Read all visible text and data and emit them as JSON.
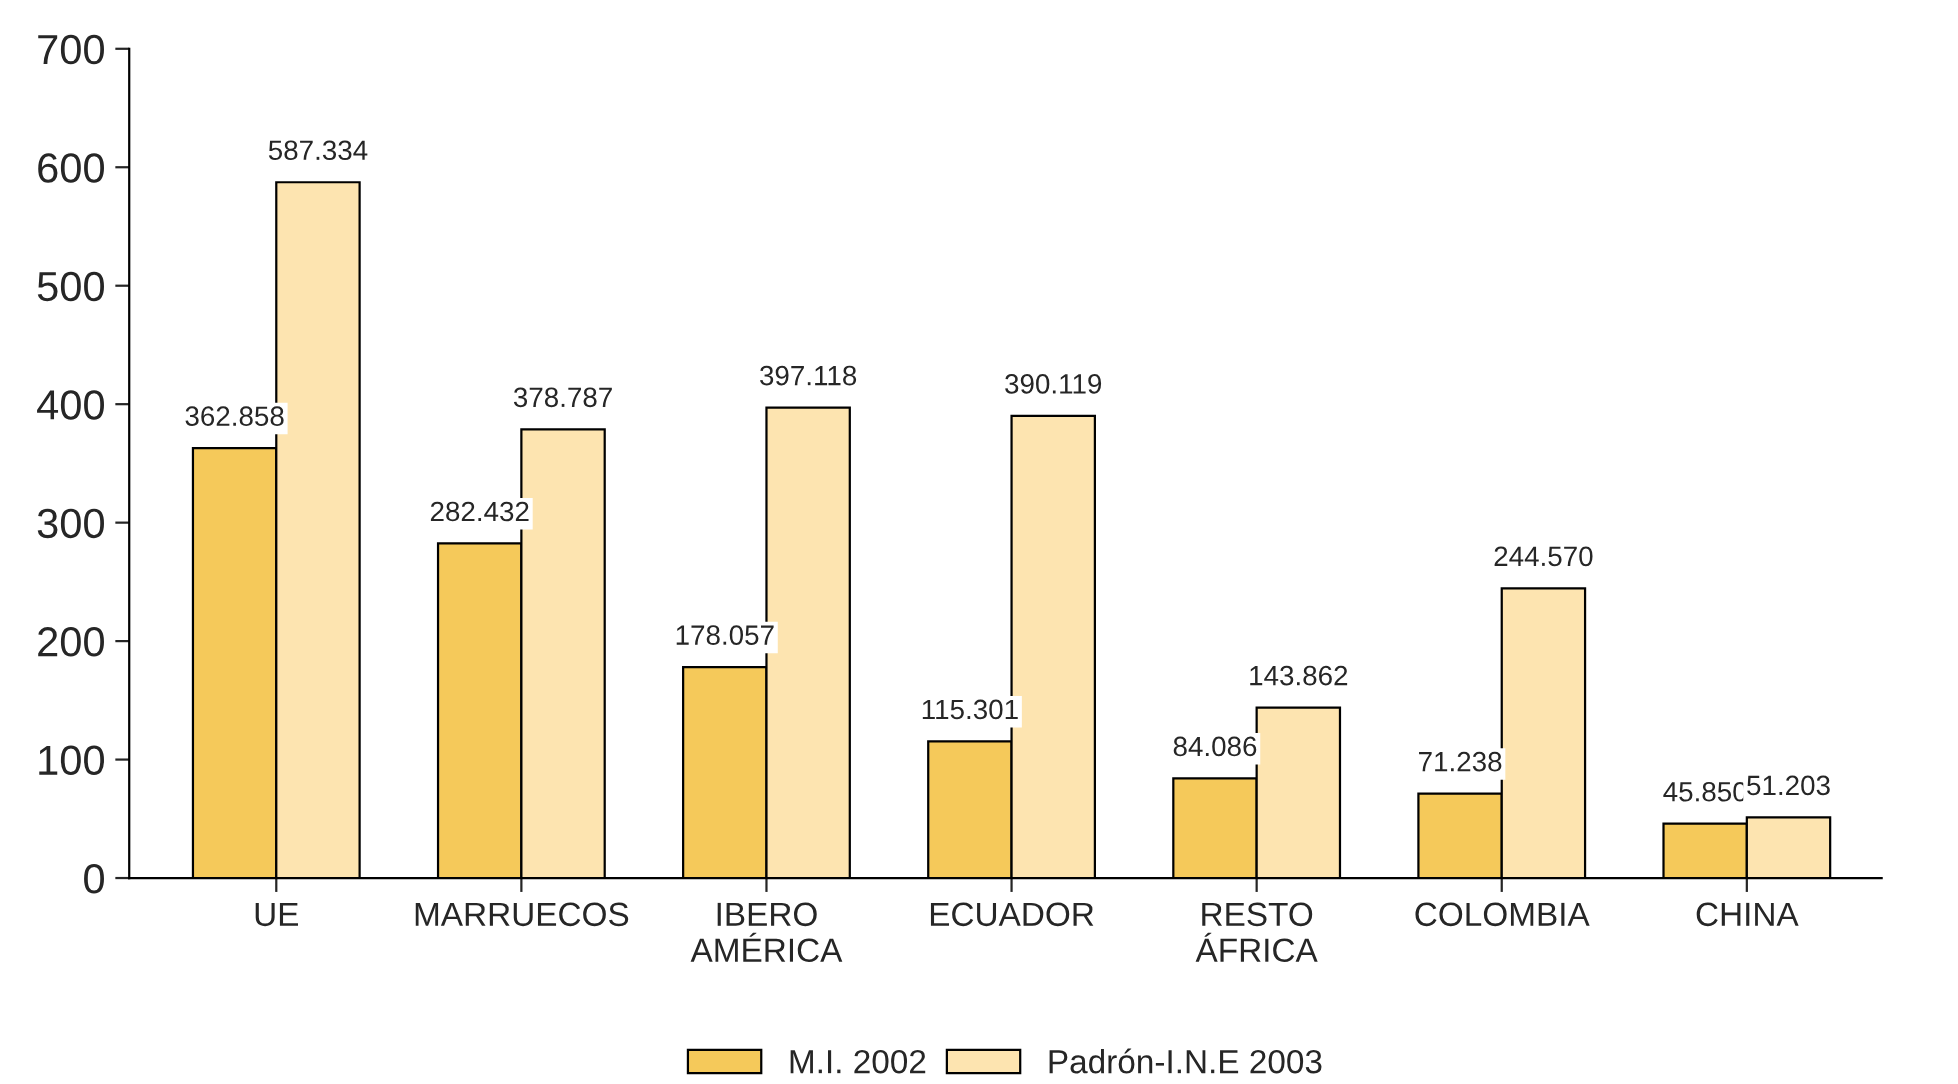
{
  "chart_data": {
    "type": "bar",
    "categories": [
      "UE",
      "MARRUECOS",
      "IBERO\nAMÉRICA",
      "ECUADOR",
      "RESTO\nÁFRICA",
      "COLOMBIA",
      "CHINA"
    ],
    "series": [
      {
        "name": "M.I. 2002",
        "color": "#f5c95a",
        "values": [
          362.858,
          282.432,
          178.057,
          115.301,
          84.086,
          71.238,
          45.85
        ],
        "value_labels": [
          "362.858",
          "282.432",
          "178.057",
          "115.301",
          "84.086",
          "71.238",
          "45.850"
        ]
      },
      {
        "name": "Padrón-I.N.E 2003",
        "color": "#fde4b0",
        "values": [
          587.334,
          378.787,
          397.118,
          390.119,
          143.862,
          244.57,
          51.203
        ],
        "value_labels": [
          "587.334",
          "378.787",
          "397.118",
          "390.119",
          "143.862",
          "244.570",
          "51.203"
        ]
      }
    ],
    "ylim": [
      0,
      700
    ],
    "yticks": [
      0,
      100,
      200,
      300,
      400,
      500,
      600,
      700
    ],
    "grid": false,
    "legend": "bottom"
  }
}
